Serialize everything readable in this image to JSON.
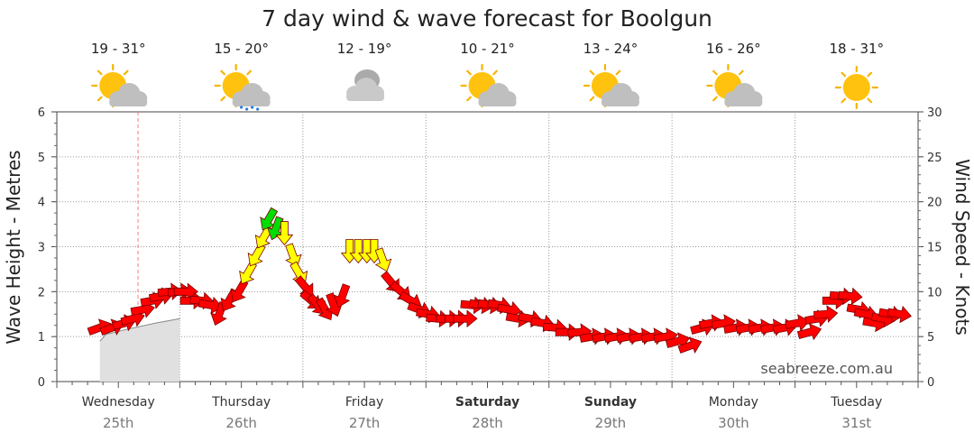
{
  "title": "7 day wind & wave forecast for Boolgun",
  "watermark": "seabreeze.com.au",
  "colors": {
    "wave_fill": "#e0e0e0",
    "wind_light": "#ff0000",
    "wind_moderate": "#ffff00",
    "wind_strong": "#00dd00",
    "grid": "#999999",
    "now_line": "#ff7777"
  },
  "days": [
    {
      "name": "Wednesday",
      "date": "25th",
      "temp": "19 - 31°",
      "icon": "sun-cloud-icon",
      "bold": false
    },
    {
      "name": "Thursday",
      "date": "26th",
      "temp": "15 - 20°",
      "icon": "sun-cloud-rain-icon",
      "bold": false
    },
    {
      "name": "Friday",
      "date": "27th",
      "temp": "12 - 19°",
      "icon": "cloud-icon",
      "bold": false
    },
    {
      "name": "Saturday",
      "date": "28th",
      "temp": "10 - 21°",
      "icon": "sun-cloud-icon",
      "bold": true
    },
    {
      "name": "Sunday",
      "date": "29th",
      "temp": "13 - 24°",
      "icon": "sun-cloud-icon",
      "bold": true
    },
    {
      "name": "Monday",
      "date": "30th",
      "temp": "16 - 26°",
      "icon": "sun-cloud-icon",
      "bold": false
    },
    {
      "name": "Tuesday",
      "date": "31st",
      "temp": "18 - 31°",
      "icon": "sun-icon",
      "bold": false
    }
  ],
  "chart_data": {
    "type": "line",
    "title": "7 day wind & wave forecast for Boolgun",
    "x_unit": "days from Wednesday 00:00",
    "ylabel_left": "Wave Height - Metres",
    "ylim_left": [
      0,
      6
    ],
    "yticks_left": [
      "0",
      "1",
      "2",
      "3",
      "4",
      "5",
      "6"
    ],
    "ylabel_right": "Wind Speed - Knots",
    "ylim_right": [
      0,
      30
    ],
    "yticks_right": [
      "0",
      "5",
      "10",
      "15",
      "20",
      "25",
      "30"
    ],
    "grid": true,
    "now_marker_day": 0.66,
    "wave_series": {
      "name": "Wave Height",
      "points": [
        [
          0.35,
          0.9
        ],
        [
          0.4,
          1.05
        ],
        [
          0.55,
          1.15
        ],
        [
          0.8,
          1.3
        ],
        [
          1.0,
          1.4
        ]
      ]
    },
    "wind_series": {
      "name": "Wind Speed",
      "points": [
        [
          0.35,
          6
        ],
        [
          0.45,
          6
        ],
        [
          0.55,
          6.5
        ],
        [
          0.62,
          7
        ],
        [
          0.7,
          8
        ],
        [
          0.78,
          9
        ],
        [
          0.85,
          9.5
        ],
        [
          0.92,
          10
        ],
        [
          1.0,
          10
        ],
        [
          1.05,
          10
        ],
        [
          1.1,
          9
        ],
        [
          1.18,
          9
        ],
        [
          1.25,
          8.5
        ],
        [
          1.32,
          7.5
        ],
        [
          1.4,
          9
        ],
        [
          1.48,
          10
        ],
        [
          1.55,
          12
        ],
        [
          1.62,
          14
        ],
        [
          1.68,
          16
        ],
        [
          1.72,
          18
        ],
        [
          1.78,
          17
        ],
        [
          1.85,
          16.5
        ],
        [
          1.92,
          14
        ],
        [
          1.97,
          12
        ],
        [
          2.02,
          10.5
        ],
        [
          2.07,
          9
        ],
        [
          2.12,
          8.5
        ],
        [
          2.18,
          8
        ],
        [
          2.25,
          8.5
        ],
        [
          2.32,
          9.5
        ],
        [
          2.38,
          14.5
        ],
        [
          2.45,
          14.5
        ],
        [
          2.52,
          14.5
        ],
        [
          2.58,
          14.5
        ],
        [
          2.65,
          13.5
        ],
        [
          2.72,
          11
        ],
        [
          2.8,
          10
        ],
        [
          2.88,
          9
        ],
        [
          2.95,
          8
        ],
        [
          3.02,
          7.5
        ],
        [
          3.1,
          7
        ],
        [
          3.18,
          7
        ],
        [
          3.25,
          7
        ],
        [
          3.32,
          7
        ],
        [
          3.38,
          8.5
        ],
        [
          3.45,
          8.5
        ],
        [
          3.52,
          8.5
        ],
        [
          3.6,
          8.5
        ],
        [
          3.68,
          8
        ],
        [
          3.75,
          7
        ],
        [
          3.85,
          7
        ],
        [
          3.95,
          6.5
        ],
        [
          4.05,
          6
        ],
        [
          4.15,
          5.5
        ],
        [
          4.25,
          5.5
        ],
        [
          4.35,
          5
        ],
        [
          4.45,
          5
        ],
        [
          4.55,
          5
        ],
        [
          4.65,
          5
        ],
        [
          4.75,
          5
        ],
        [
          4.85,
          5
        ],
        [
          4.95,
          5
        ],
        [
          5.05,
          4.5
        ],
        [
          5.15,
          4
        ],
        [
          5.25,
          6
        ],
        [
          5.32,
          6.5
        ],
        [
          5.42,
          6.5
        ],
        [
          5.52,
          6
        ],
        [
          5.62,
          6
        ],
        [
          5.72,
          6
        ],
        [
          5.82,
          6
        ],
        [
          5.92,
          6
        ],
        [
          6.02,
          6.5
        ],
        [
          6.12,
          5.5
        ],
        [
          6.18,
          7
        ],
        [
          6.25,
          7.5
        ],
        [
          6.32,
          9
        ],
        [
          6.38,
          9.5
        ],
        [
          6.45,
          9.5
        ],
        [
          6.52,
          8
        ],
        [
          6.58,
          7.5
        ],
        [
          6.65,
          6.5
        ],
        [
          6.72,
          7
        ],
        [
          6.78,
          7.5
        ],
        [
          6.85,
          7.5
        ]
      ],
      "direction_deg": [
        70,
        70,
        75,
        75,
        80,
        80,
        80,
        85,
        85,
        90,
        90,
        95,
        100,
        200,
        210,
        210,
        210,
        210,
        210,
        210,
        200,
        180,
        160,
        150,
        140,
        130,
        140,
        150,
        160,
        200,
        180,
        180,
        180,
        180,
        160,
        140,
        130,
        120,
        110,
        100,
        95,
        90,
        90,
        90,
        95,
        100,
        100,
        100,
        100,
        100,
        100,
        100,
        95,
        90,
        85,
        80,
        80,
        80,
        80,
        80,
        80,
        80,
        75,
        70,
        75,
        80,
        80,
        80,
        80,
        80,
        80,
        80,
        80,
        75,
        80,
        85,
        90,
        95,
        95,
        100,
        100,
        100,
        100,
        100,
        100
      ]
    },
    "wind_color_thresholds": {
      "moderate_from_knots": 12,
      "strong_from_knots": 17
    }
  }
}
